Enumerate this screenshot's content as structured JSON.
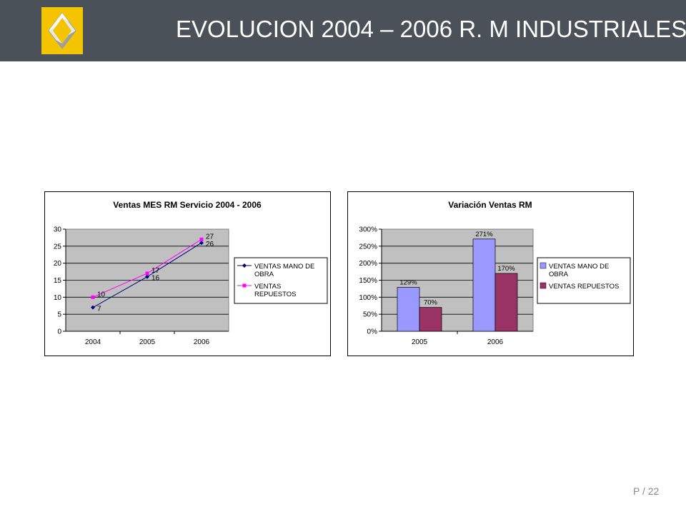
{
  "header": {
    "title": "EVOLUCION 2004 – 2006 R. M INDUSTRIALES",
    "logo": "renault-diamond-logo",
    "colors": {
      "bar": "#4a5158",
      "logo_bg": "#f5c400"
    }
  },
  "footer": {
    "page": "P / 22"
  },
  "chart_data": [
    {
      "type": "line",
      "title": "Ventas MES RM Servicio 2004 - 2006",
      "xlabel": "",
      "ylabel": "",
      "categories": [
        "2004",
        "2005",
        "2006"
      ],
      "ylim": [
        0,
        30
      ],
      "yticks": [
        "0",
        "5",
        "10",
        "15",
        "20",
        "25",
        "30"
      ],
      "grid": true,
      "plot_bg": "#c0c0c0",
      "legend": "right",
      "series": [
        {
          "name": "VENTAS MANO DE OBRA",
          "values": [
            7,
            16,
            26
          ],
          "labels": [
            "7",
            "16",
            "26"
          ],
          "color": "#000080",
          "marker": "diamond"
        },
        {
          "name": "VENTAS REPUESTOS",
          "values": [
            10,
            17,
            27
          ],
          "labels": [
            "10",
            "17",
            "27"
          ],
          "color": "#ff00ff",
          "marker": "square"
        }
      ]
    },
    {
      "type": "bar",
      "title": "Variación Ventas RM",
      "xlabel": "",
      "ylabel": "",
      "categories": [
        "2005",
        "2006"
      ],
      "ylim": [
        0,
        300
      ],
      "yticks": [
        "0%",
        "50%",
        "100%",
        "150%",
        "200%",
        "250%",
        "300%"
      ],
      "grid": true,
      "plot_bg": "#c0c0c0",
      "legend": "right",
      "series": [
        {
          "name": "VENTAS MANO DE OBRA",
          "values": [
            129,
            271
          ],
          "labels": [
            "129%",
            "271%"
          ],
          "color": "#9999ff"
        },
        {
          "name": "VENTAS REPUESTOS",
          "values": [
            70,
            170
          ],
          "labels": [
            "70%",
            "170%"
          ],
          "color": "#993366"
        }
      ]
    }
  ]
}
